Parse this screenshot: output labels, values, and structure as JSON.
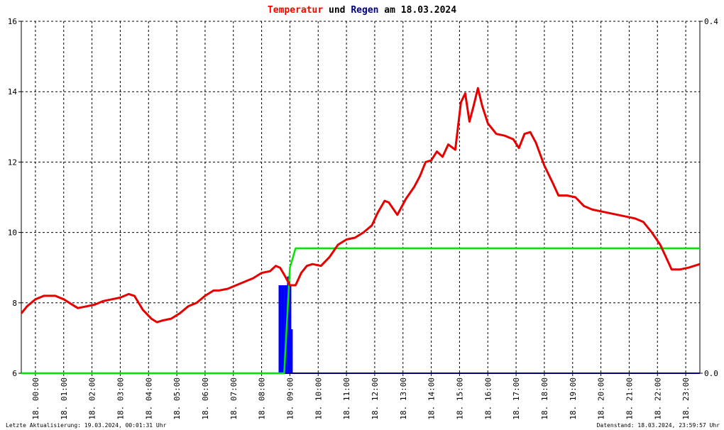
{
  "title": {
    "part1": "Temperatur",
    "part2": " und ",
    "part3": "Regen",
    "part4": " am 18.03.2024"
  },
  "footer": {
    "left": "Letzte Aktualisierung: 19.03.2024, 00:01:31 Uhr",
    "right": "Datenstand: 18.03.2024, 23:59:57 Uhr"
  },
  "colors": {
    "temperature": "#e60000",
    "rain_bar": "#0000ff",
    "rain_line": "#00e600",
    "axis": "#000000",
    "grid": "#000000",
    "baseline": "#000080",
    "title_temp": "#ff0000",
    "title_rain": "#00007f"
  },
  "chart_data": {
    "type": "line",
    "title": "Temperatur und Regen am 18.03.2024",
    "grid": true,
    "x_ticks": [
      "18. 00:00",
      "18. 01:00",
      "18. 02:00",
      "18. 03:00",
      "18. 04:00",
      "18. 05:00",
      "18. 06:00",
      "18. 07:00",
      "18. 08:00",
      "18. 09:00",
      "18. 10:00",
      "18. 11:00",
      "18. 12:00",
      "18. 13:00",
      "18. 14:00",
      "18. 15:00",
      "18. 16:00",
      "18. 17:00",
      "18. 18:00",
      "18. 19:00",
      "18. 20:00",
      "18. 21:00",
      "18. 22:00",
      "18. 23:00"
    ],
    "y_left": {
      "ticks": [
        "6",
        "8",
        "10",
        "12",
        "14",
        "16"
      ],
      "range": [
        6,
        16
      ]
    },
    "y_right": {
      "ticks": [
        "0.0",
        "0.4"
      ],
      "range": [
        0.0,
        0.4
      ]
    },
    "xlim": [
      0,
      24
    ],
    "series": [
      {
        "kind": "temperature",
        "axis": "left",
        "x": [
          0,
          0.2,
          0.5,
          0.8,
          1.0,
          1.2,
          1.5,
          1.8,
          2.0,
          2.3,
          2.6,
          2.9,
          3.2,
          3.5,
          3.8,
          4.0,
          4.3,
          4.6,
          4.8,
          5.0,
          5.3,
          5.6,
          5.9,
          6.2,
          6.5,
          6.8,
          7.0,
          7.3,
          7.6,
          7.9,
          8.2,
          8.5,
          8.8,
          9.0,
          9.15,
          9.3,
          9.5,
          9.7,
          9.9,
          10.1,
          10.3,
          10.6,
          10.9,
          11.2,
          11.5,
          11.8,
          12.1,
          12.4,
          12.6,
          12.85,
          13.0,
          13.3,
          13.6,
          13.9,
          14.1,
          14.3,
          14.5,
          14.7,
          14.9,
          15.1,
          15.35,
          15.55,
          15.7,
          15.85,
          16.0,
          16.15,
          16.3,
          16.5,
          16.8,
          17.1,
          17.4,
          17.6,
          17.8,
          18.0,
          18.2,
          18.5,
          18.8,
          19.0,
          19.3,
          19.6,
          19.9,
          20.2,
          20.5,
          20.8,
          21.1,
          21.4,
          21.7,
          22.0,
          22.3,
          22.6,
          22.8,
          23.0,
          23.3,
          23.6,
          24.0
        ],
        "y": [
          7.7,
          7.9,
          8.1,
          8.2,
          8.2,
          8.2,
          8.1,
          7.95,
          7.85,
          7.9,
          7.95,
          8.05,
          8.1,
          8.15,
          8.25,
          8.2,
          7.8,
          7.55,
          7.45,
          7.5,
          7.55,
          7.7,
          7.9,
          8.0,
          8.2,
          8.35,
          8.35,
          8.4,
          8.5,
          8.6,
          8.7,
          8.85,
          8.9,
          9.05,
          9.0,
          8.8,
          8.5,
          8.5,
          8.85,
          9.05,
          9.1,
          9.05,
          9.3,
          9.65,
          9.8,
          9.85,
          10.0,
          10.2,
          10.55,
          10.9,
          10.85,
          10.5,
          10.95,
          11.3,
          11.6,
          12.0,
          12.05,
          12.3,
          12.15,
          12.5,
          12.35,
          13.7,
          13.95,
          13.15,
          13.6,
          14.1,
          13.6,
          13.1,
          12.8,
          12.75,
          12.65,
          12.4,
          12.8,
          12.85,
          12.55,
          11.9,
          11.4,
          11.05,
          11.05,
          11.0,
          10.75,
          10.65,
          10.6,
          10.55,
          10.5,
          10.45,
          10.4,
          10.3,
          10.0,
          9.65,
          9.3,
          8.95,
          8.95,
          9.0,
          9.1
        ]
      },
      {
        "kind": "rain_sum",
        "axis": "right",
        "x": [
          0,
          9.15,
          9.3,
          9.5,
          9.7,
          24.0
        ],
        "y": [
          0.0,
          0.0,
          0.0,
          0.12,
          0.142,
          0.142
        ]
      },
      {
        "kind": "rain_bars",
        "axis": "right",
        "x": [
          9.1,
          9.2,
          9.3,
          9.4,
          9.45,
          9.5
        ],
        "y": [
          0.1,
          0.1,
          0.1,
          0.11,
          0.1,
          0.05
        ]
      }
    ]
  }
}
